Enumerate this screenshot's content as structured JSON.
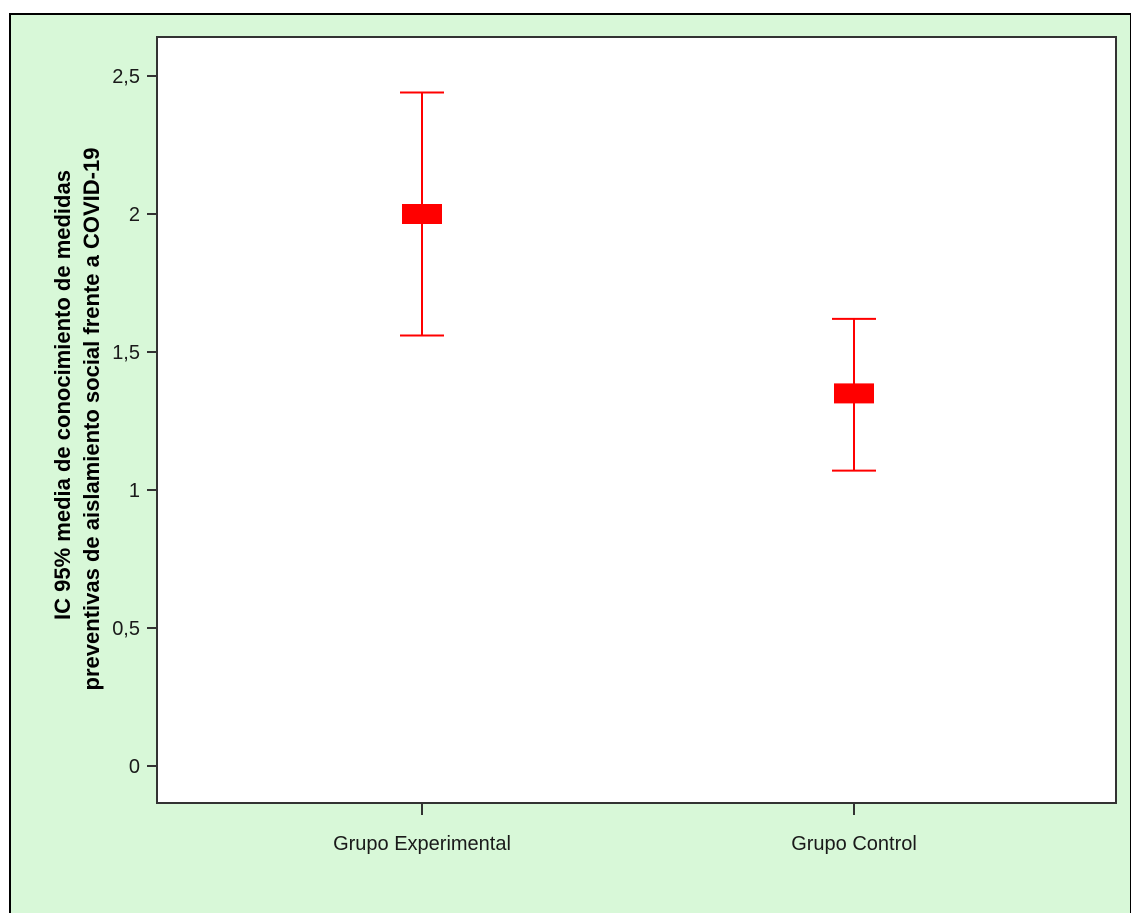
{
  "colors": {
    "background": "#d8f8d8",
    "plot_area": "#ffffff",
    "axis": "#333333",
    "series": "#ff0000"
  },
  "chart_data": {
    "type": "errorbar",
    "title": "",
    "xlabel": "",
    "ylabel": "IC 95% media de conocimiento de medidas preventivas de aislamiento social frente a COVID-19",
    "ylabel_lines": [
      "IC 95% media de conocimiento de medidas",
      "preventivas de aislamiento social frente a COVID-19"
    ],
    "categories": [
      "Grupo Experimental",
      "Grupo Control"
    ],
    "means": [
      2.0,
      1.35
    ],
    "lower": [
      1.56,
      1.07
    ],
    "upper": [
      2.44,
      1.62
    ],
    "ylim": [
      -0.14,
      2.64
    ],
    "yticks": [
      0,
      0.5,
      1,
      1.5,
      2,
      2.5
    ],
    "ytick_labels": [
      "0",
      "0,5",
      "1",
      "1,5",
      "2",
      "2,5"
    ],
    "grid": false,
    "legend": "none"
  }
}
